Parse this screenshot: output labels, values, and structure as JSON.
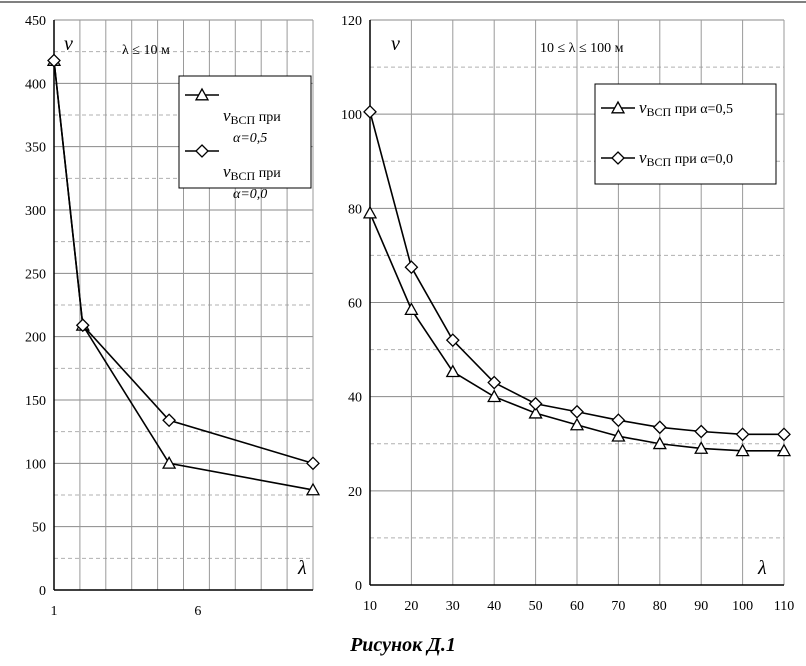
{
  "caption": "Рисунок Д.1",
  "chart_data": [
    {
      "type": "line",
      "y_label": "v",
      "x_label": "λ",
      "annotation": "λ ≤ 10 м",
      "x_ticks": [
        1,
        6
      ],
      "xlim": [
        1,
        10
      ],
      "ylim": [
        0,
        450
      ],
      "y_ticks": [
        0,
        50,
        100,
        150,
        200,
        250,
        300,
        350,
        400,
        450
      ],
      "grid": true,
      "legend_position": "top-right",
      "series": [
        {
          "name": "v_ВСП при α=0,5",
          "legend_main": "v",
          "legend_sub": "ВСП",
          "legend_suffix": " при",
          "legend_line2": "α=0,5",
          "marker": "triangle",
          "x": [
            1,
            2,
            5,
            10
          ],
          "y": [
            418,
            209,
            100,
            79
          ]
        },
        {
          "name": "v_ВСП при α=0,0",
          "legend_main": "v",
          "legend_sub": "ВСП",
          "legend_suffix": " при",
          "legend_line2": "α=0,0",
          "marker": "diamond",
          "x": [
            1,
            2,
            5,
            10
          ],
          "y": [
            418,
            209,
            134,
            100
          ]
        }
      ]
    },
    {
      "type": "line",
      "y_label": "v",
      "x_label": "λ",
      "annotation": "10 ≤ λ ≤ 100 м",
      "x_ticks": [
        10,
        20,
        30,
        40,
        50,
        60,
        70,
        80,
        90,
        100,
        110
      ],
      "xlim": [
        10,
        110
      ],
      "ylim": [
        0,
        120
      ],
      "y_ticks": [
        0,
        20,
        40,
        60,
        80,
        100,
        120
      ],
      "grid": true,
      "legend_position": "top-right",
      "series": [
        {
          "name": "v_ВСП при α=0,5",
          "legend_main": "v",
          "legend_sub": "ВСП",
          "legend_suffix": " при α=0,5",
          "marker": "triangle",
          "x": [
            10,
            20,
            30,
            40,
            50,
            60,
            70,
            80,
            90,
            100,
            110
          ],
          "y": [
            79,
            58.5,
            45.3,
            40,
            36.5,
            34,
            31.6,
            30,
            29,
            28.5,
            28.5
          ]
        },
        {
          "name": "v_ВСП при α=0,0",
          "legend_main": "v",
          "legend_sub": "ВСП",
          "legend_suffix": " при α=0,0",
          "marker": "diamond",
          "x": [
            10,
            20,
            30,
            40,
            50,
            60,
            70,
            80,
            90,
            100,
            110
          ],
          "y": [
            100.5,
            67.5,
            52,
            43,
            38.5,
            36.8,
            35,
            33.5,
            32.6,
            32,
            32
          ]
        }
      ]
    }
  ]
}
